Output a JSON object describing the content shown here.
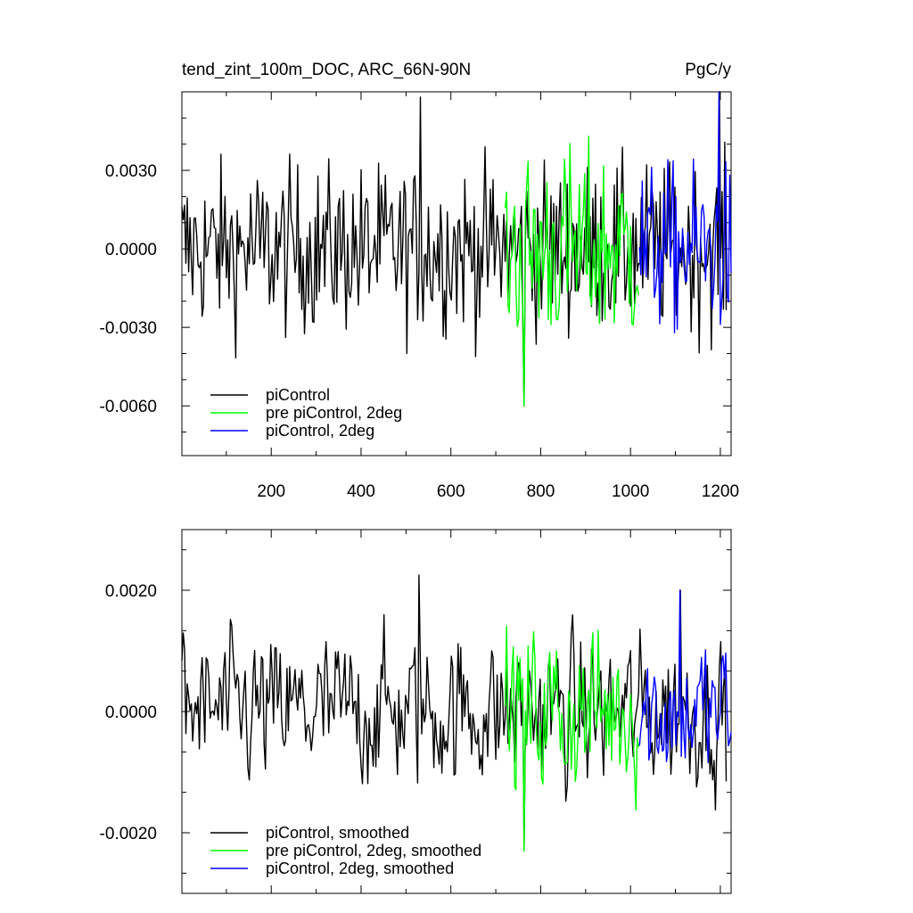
{
  "header": {
    "left_title": "tend_zint_100m_DOC, ARC_66N-90N",
    "right_title": "PgC/y"
  },
  "colors": {
    "piControl": "#000000",
    "pre_piControl_2deg": "#00ff00",
    "piControl_2deg": "#0000ff"
  },
  "chart_data": [
    {
      "type": "line",
      "title": "tend_zint_100m_DOC, ARC_66N-90N",
      "units": "PgC/y",
      "xlim": [
        1,
        1224
      ],
      "ylim": [
        -0.0079,
        0.006
      ],
      "x_ticks": [
        200,
        400,
        600,
        800,
        1000,
        1200
      ],
      "x_tick_labels": [
        "200",
        "400",
        "600",
        "800",
        "1000",
        "1200"
      ],
      "y_ticks": [
        0.003,
        0.0,
        -0.003,
        -0.006
      ],
      "y_tick_labels": [
        "0.0030",
        "0.0000",
        "-0.0030",
        "-0.0060"
      ],
      "legend_position": "bottom-left",
      "series": [
        {
          "name": "piControl",
          "color": "#000000",
          "x_range": [
            1,
            1215
          ],
          "amplitude": 0.0021,
          "mean": 0.0
        },
        {
          "name": "pre piControl, 2deg",
          "color": "#00ff00",
          "x_range": [
            721,
            1020
          ],
          "amplitude": 0.0025,
          "mean": 0.0
        },
        {
          "name": "piControl, 2deg",
          "color": "#0000ff",
          "x_range": [
            1020,
            1224
          ],
          "amplitude": 0.0021,
          "mean": 0.0
        }
      ],
      "annotated_extremes": [
        {
          "x": 533,
          "y": 0.0058
        },
        {
          "x": 763,
          "y": -0.006
        },
        {
          "x": 1198,
          "y": 0.006
        }
      ]
    },
    {
      "type": "line",
      "title": "",
      "xlim": [
        1,
        1224
      ],
      "ylim": [
        -0.003,
        0.003
      ],
      "x_ticks": [
        200,
        400,
        600,
        800,
        1000,
        1200
      ],
      "y_ticks": [
        0.002,
        0.0,
        -0.002
      ],
      "y_tick_labels": [
        "0.0020",
        "0.0000",
        "-0.0020"
      ],
      "legend_position": "bottom-left",
      "series": [
        {
          "name": "piControl, smoothed",
          "color": "#000000",
          "x_range": [
            1,
            1215
          ],
          "amplitude": 0.0007,
          "mean": 0.0
        },
        {
          "name": "pre piControl, 2deg, smoothed",
          "color": "#00ff00",
          "x_range": [
            721,
            1020
          ],
          "amplitude": 0.0008,
          "mean": 0.0
        },
        {
          "name": "piControl, 2deg, smoothed",
          "color": "#0000ff",
          "x_range": [
            1020,
            1224
          ],
          "amplitude": 0.0007,
          "mean": 0.0
        }
      ],
      "annotated_extremes": [
        {
          "x": 530,
          "y": 0.00225
        },
        {
          "x": 763,
          "y": -0.0023
        },
        {
          "x": 1110,
          "y": 0.002
        }
      ]
    }
  ]
}
